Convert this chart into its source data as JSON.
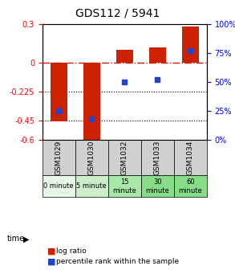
{
  "title": "GDS112 / 5941",
  "samples": [
    "GSM1029",
    "GSM1030",
    "GSM1032",
    "GSM1033",
    "GSM1034"
  ],
  "time_labels": [
    "0 minute",
    "5 minute",
    "15\nminute",
    "30\nminute",
    "60\nminute"
  ],
  "time_bg_colors": [
    "#e8f8e8",
    "#c8f0c8",
    "#a0e8a0",
    "#78e078",
    "#50d850"
  ],
  "log_ratios": [
    -0.46,
    -0.6,
    0.1,
    0.12,
    0.285
  ],
  "percentile_ranks": [
    25,
    18,
    50,
    52,
    77
  ],
  "ylim_left": [
    -0.6,
    0.3
  ],
  "ylim_right": [
    0,
    100
  ],
  "yticks_left": [
    0.3,
    0,
    -0.225,
    -0.45,
    -0.6
  ],
  "yticks_right": [
    100,
    75,
    50,
    25,
    0
  ],
  "bar_color": "#cc2200",
  "dot_color": "#2244cc",
  "bg_color_sample": "#d0d0d0",
  "bg_color_light_green1": "#e8f8e8",
  "bg_color_light_green2": "#cceecc",
  "bg_color_med_green": "#88dd88",
  "hline_color": "#cc2200",
  "grid_color": "#000000",
  "legend_bar_label": "log ratio",
  "legend_dot_label": "percentile rank within the sample",
  "time_label": "time"
}
